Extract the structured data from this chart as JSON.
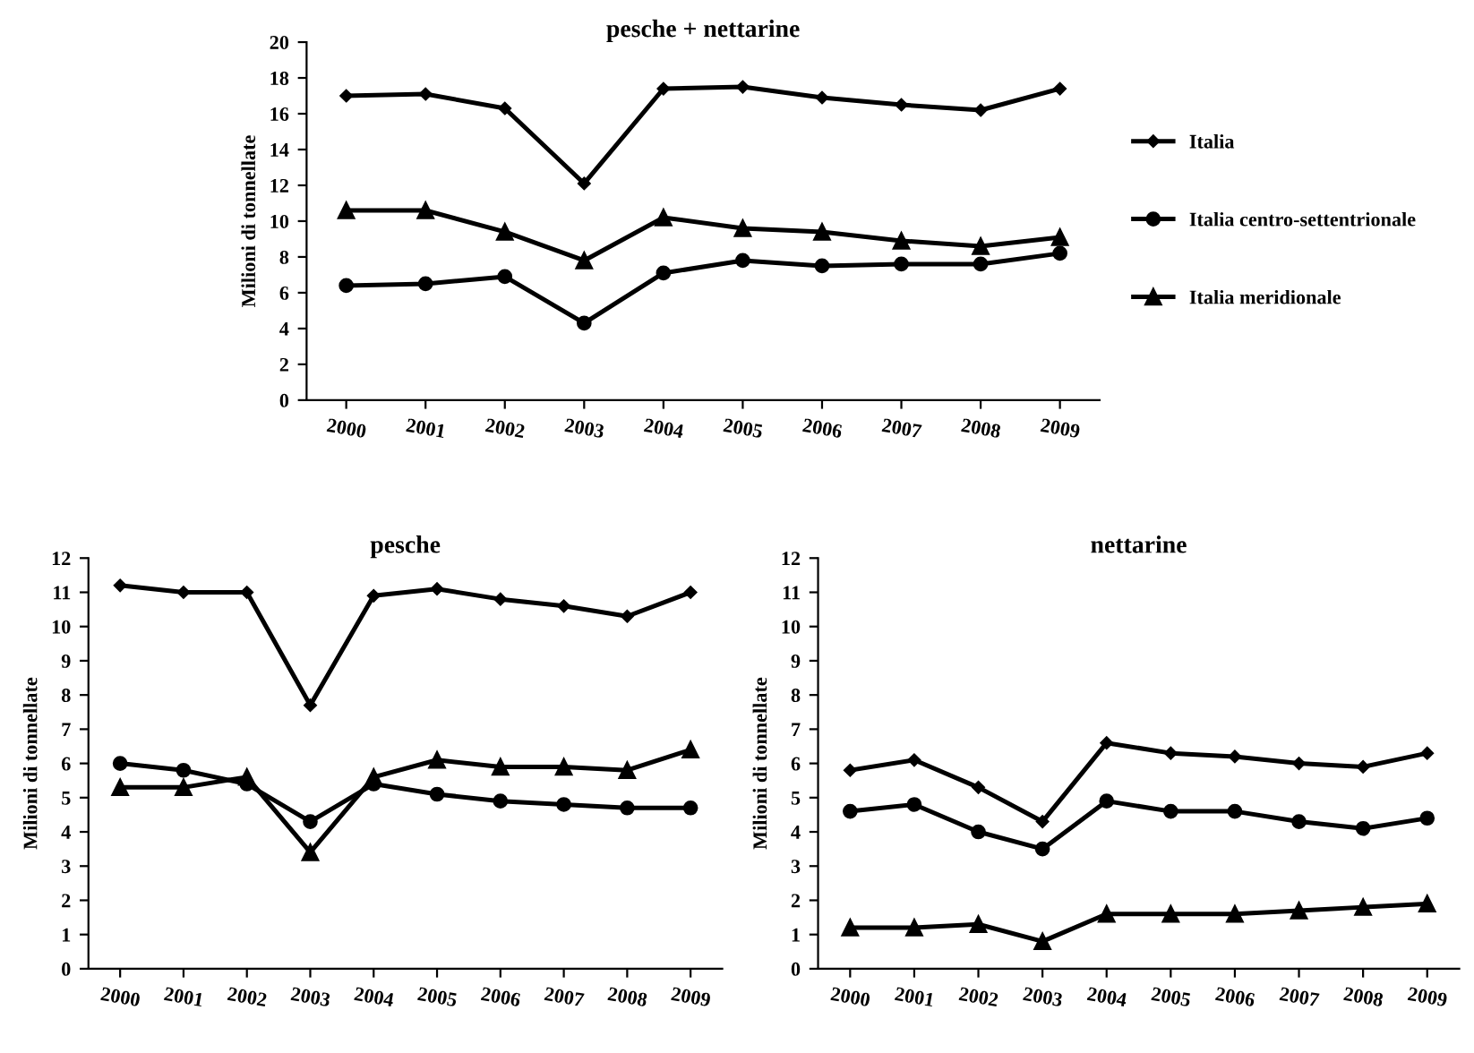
{
  "chart_data": [
    {
      "type": "line",
      "title": "pesche + nettarine",
      "ylabel": "Milioni di tonnellate",
      "categories": [
        "2000",
        "2001",
        "2002",
        "2003",
        "2004",
        "2005",
        "2006",
        "2007",
        "2008",
        "2009"
      ],
      "ylim": [
        0,
        20
      ],
      "yticks": [
        0,
        2,
        4,
        6,
        8,
        10,
        12,
        14,
        16,
        18,
        20
      ],
      "legend": "right",
      "series": [
        {
          "name": "Italia",
          "color": "#000000",
          "marker": "diamond",
          "values": [
            17.0,
            17.1,
            16.3,
            12.1,
            17.4,
            17.5,
            16.9,
            16.5,
            16.2,
            17.4
          ]
        },
        {
          "name": "Italia centro-settentrionale",
          "color": "#000000",
          "marker": "circle",
          "values": [
            6.4,
            6.5,
            6.9,
            4.3,
            7.1,
            7.8,
            7.5,
            7.6,
            7.6,
            8.2
          ]
        },
        {
          "name": "Italia meridionale",
          "color": "#000000",
          "marker": "triangle",
          "values": [
            10.6,
            10.6,
            9.4,
            7.8,
            10.2,
            9.6,
            9.4,
            8.9,
            8.6,
            9.1
          ]
        }
      ]
    },
    {
      "type": "line",
      "title": "pesche",
      "ylabel": "Milioni di tonnellate",
      "categories": [
        "2000",
        "2001",
        "2002",
        "2003",
        "2004",
        "2005",
        "2006",
        "2007",
        "2008",
        "2009"
      ],
      "ylim": [
        0,
        12
      ],
      "yticks": [
        0,
        1,
        2,
        3,
        4,
        5,
        6,
        7,
        8,
        9,
        10,
        11,
        12
      ],
      "series": [
        {
          "color": "#000000",
          "marker": "diamond",
          "values": [
            11.2,
            11.0,
            11.0,
            7.7,
            10.9,
            11.1,
            10.8,
            10.6,
            10.3,
            11.0
          ]
        },
        {
          "color": "#000000",
          "marker": "circle",
          "values": [
            6.0,
            5.8,
            5.4,
            4.3,
            5.4,
            5.1,
            4.9,
            4.8,
            4.7,
            4.7
          ]
        },
        {
          "color": "#000000",
          "marker": "triangle",
          "values": [
            5.3,
            5.3,
            5.6,
            3.4,
            5.6,
            6.1,
            5.9,
            5.9,
            5.8,
            6.4
          ]
        }
      ]
    },
    {
      "type": "line",
      "title": "nettarine",
      "ylabel": "Milioni di tonnellate",
      "categories": [
        "2000",
        "2001",
        "2002",
        "2003",
        "2004",
        "2005",
        "2006",
        "2007",
        "2008",
        "2009"
      ],
      "ylim": [
        0,
        12
      ],
      "yticks": [
        0,
        1,
        2,
        3,
        4,
        5,
        6,
        7,
        8,
        9,
        10,
        11,
        12
      ],
      "series": [
        {
          "color": "#000000",
          "marker": "diamond",
          "values": [
            5.8,
            6.1,
            5.3,
            4.3,
            6.6,
            6.3,
            6.2,
            6.0,
            5.9,
            6.3
          ]
        },
        {
          "color": "#000000",
          "marker": "circle",
          "values": [
            4.6,
            4.8,
            4.0,
            3.5,
            4.9,
            4.6,
            4.6,
            4.3,
            4.1,
            4.4
          ]
        },
        {
          "color": "#000000",
          "marker": "triangle",
          "values": [
            1.2,
            1.2,
            1.3,
            0.8,
            1.6,
            1.6,
            1.6,
            1.7,
            1.8,
            1.9
          ]
        }
      ]
    }
  ]
}
